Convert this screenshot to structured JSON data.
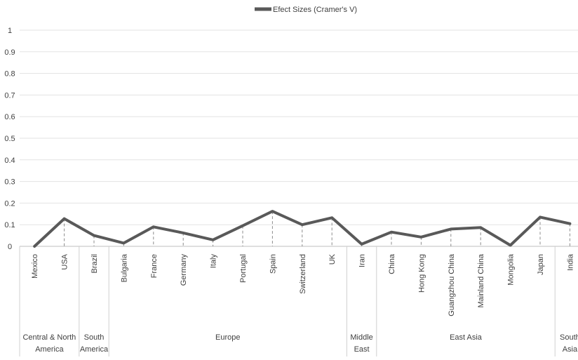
{
  "chart_data": {
    "type": "line",
    "legend": {
      "label": "Efect Sizes (Cramer's V)",
      "position": "top-center",
      "color": "#595959"
    },
    "y_axis": {
      "min": 0,
      "max": 1,
      "ticks": [
        "0",
        "0.1",
        "0.2",
        "0.3",
        "0.4",
        "0.5",
        "0.6",
        "0.7",
        "0.8",
        "0.9",
        "1"
      ],
      "grid": true
    },
    "categories": [
      "Mexico",
      "USA",
      "Brazil",
      "Bulgaria",
      "France",
      "Germany",
      "Italy",
      "Portugal",
      "Spain",
      "Switzerland",
      "UK",
      "Iran",
      "China",
      "Hong Kong",
      "Guangzhou China",
      "Mainland China",
      "Mongolia",
      "Japan",
      "India"
    ],
    "series": [
      {
        "name": "Efect Sizes (Cramer's V)",
        "color": "#595959",
        "values": [
          0.0,
          0.128,
          0.05,
          0.015,
          0.09,
          0.062,
          0.03,
          0.095,
          0.162,
          0.1,
          0.132,
          0.01,
          0.066,
          0.043,
          0.08,
          0.087,
          0.005,
          0.135,
          0.105
        ]
      }
    ],
    "groups": [
      {
        "label_lines": [
          "Central & North",
          "America"
        ],
        "count": 2
      },
      {
        "label_lines": [
          "South",
          "America"
        ],
        "count": 1
      },
      {
        "label_lines": [
          "Europe"
        ],
        "count": 8
      },
      {
        "label_lines": [
          "Middle",
          "East"
        ],
        "count": 1
      },
      {
        "label_lines": [
          "East Asia"
        ],
        "count": 6
      },
      {
        "label_lines": [
          "South",
          "Asia"
        ],
        "count": 1
      }
    ],
    "drop_lines": true
  }
}
